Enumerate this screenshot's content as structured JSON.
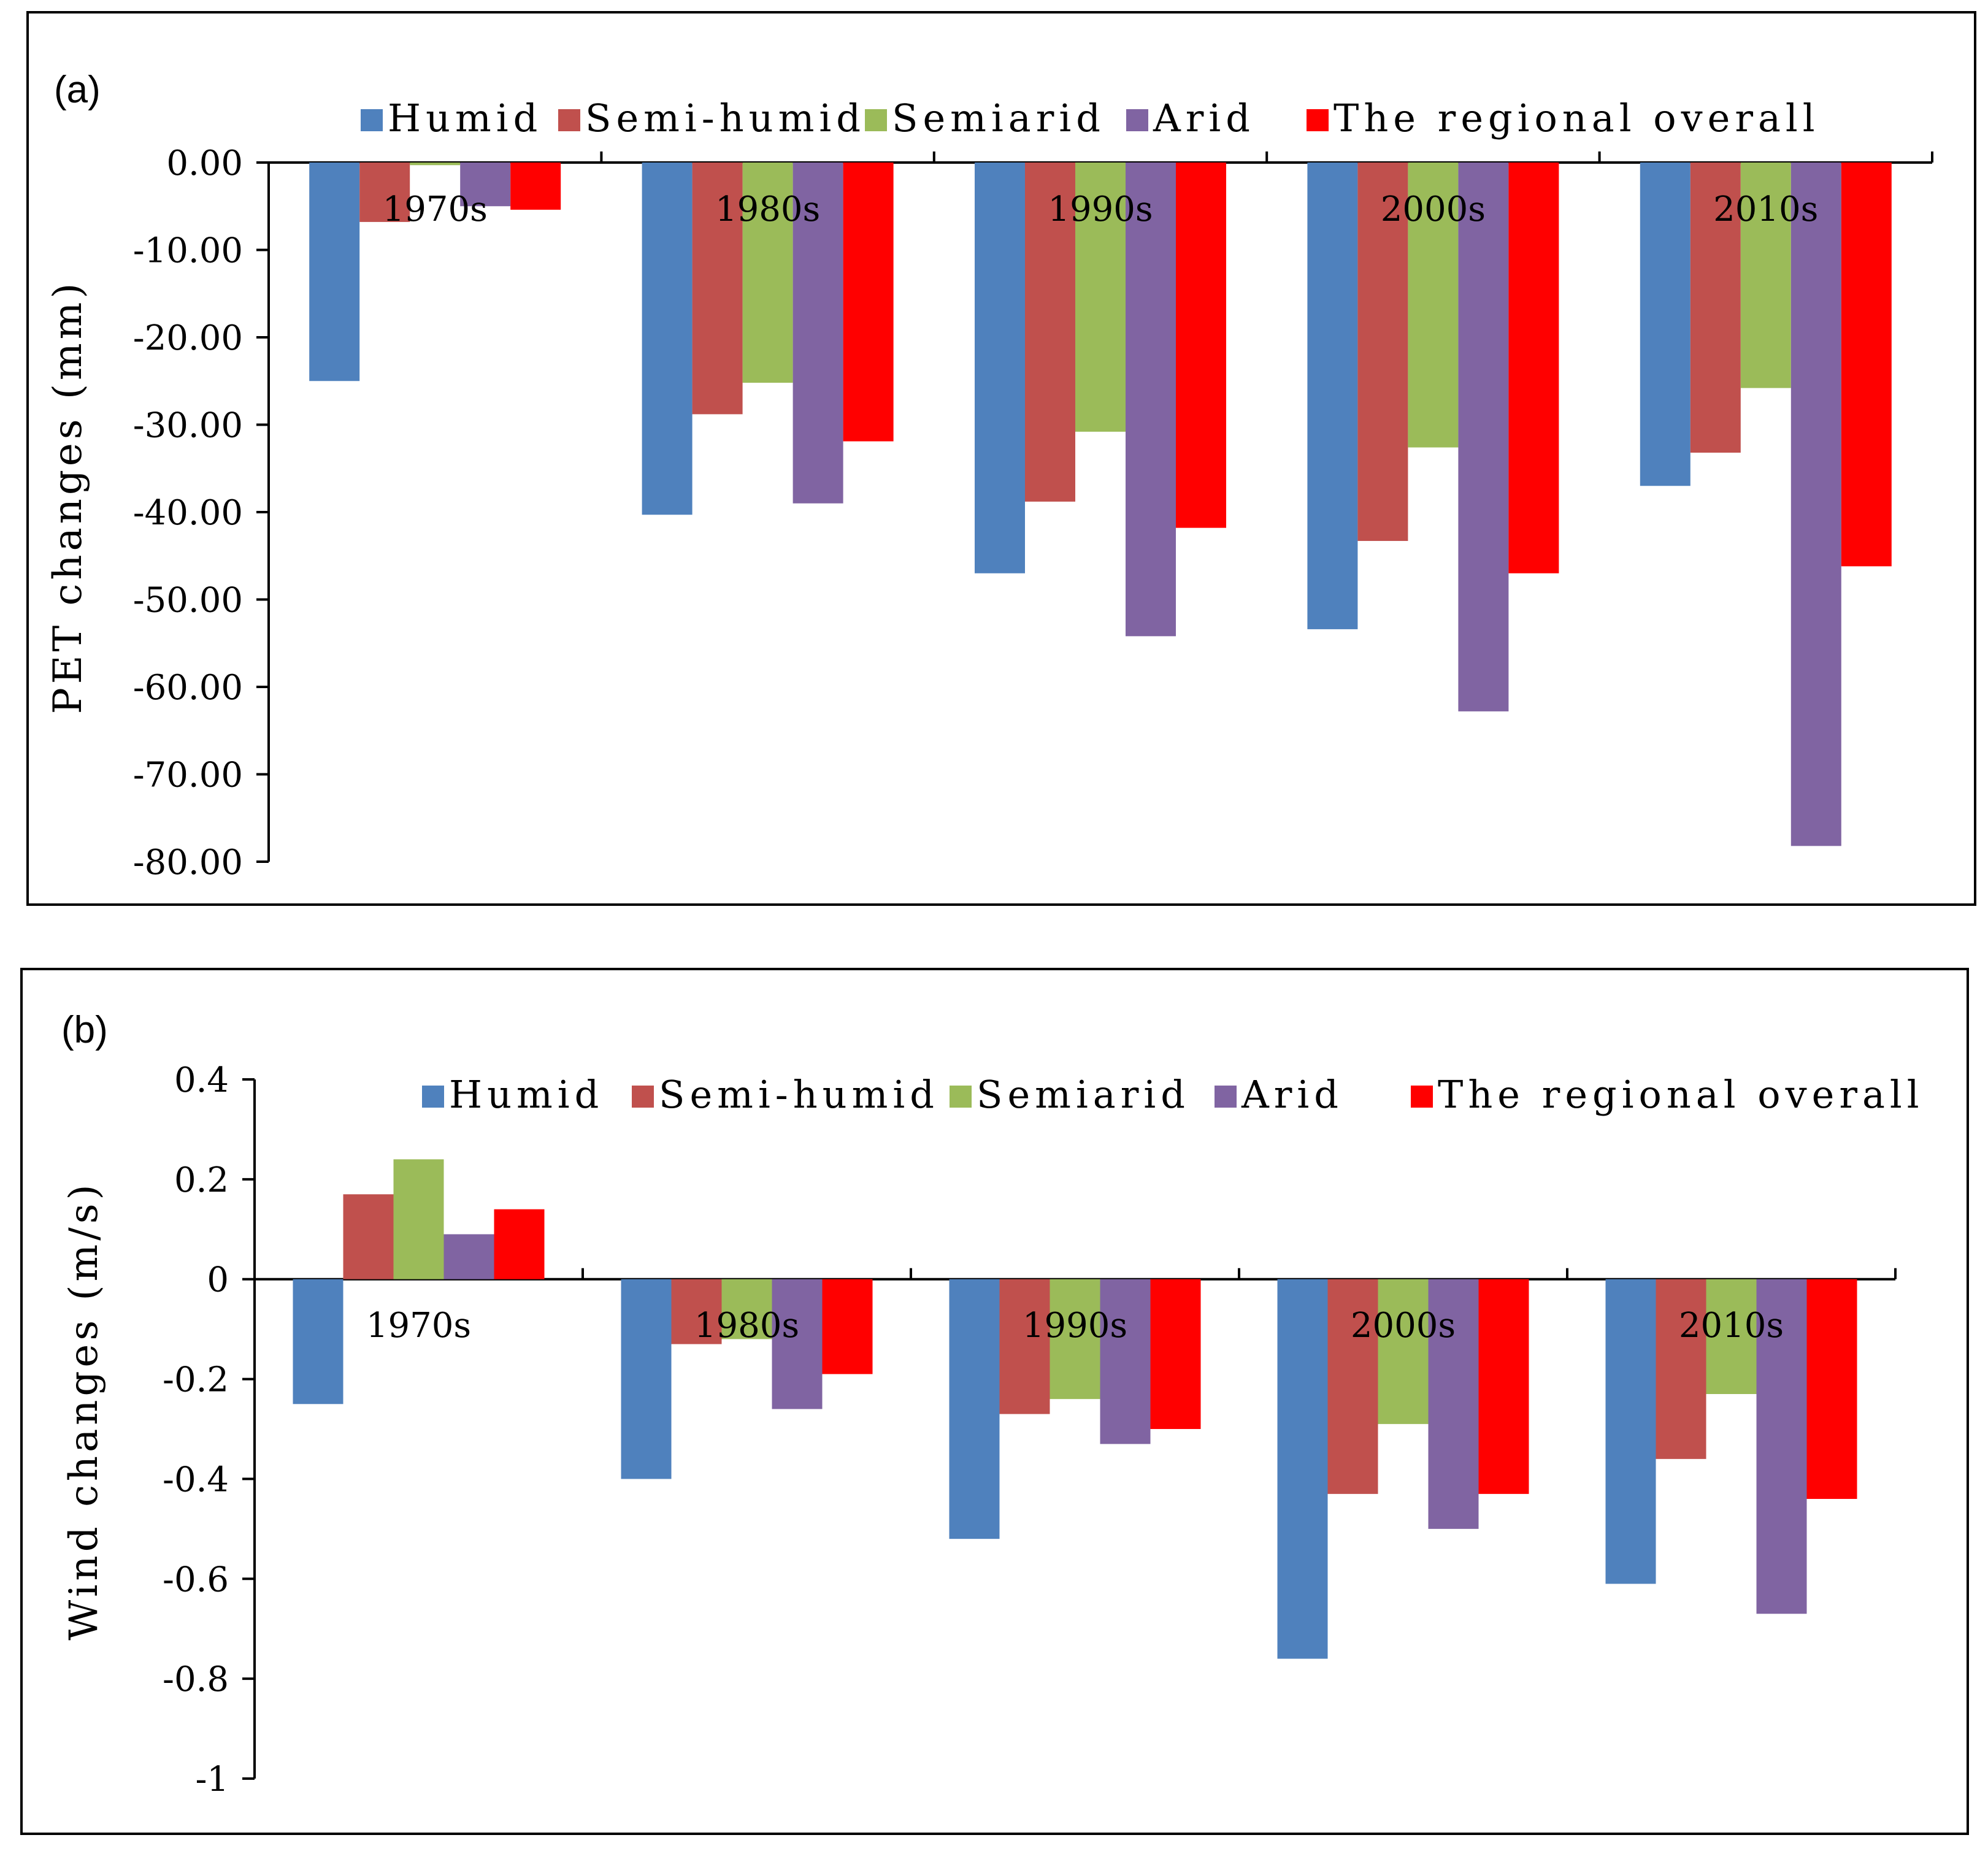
{
  "chart_data": [
    {
      "type": "bar",
      "panel_label": "(a)",
      "title": "",
      "xlabel": "",
      "ylabel": "PET changes (mm)",
      "ylim": [
        -80,
        0
      ],
      "ytick_values": [
        0,
        -10,
        -20,
        -30,
        -40,
        -50,
        -60,
        -70,
        -80
      ],
      "ytick_labels": [
        "0.00",
        "-10.00",
        "-20.00",
        "-30.00",
        "-40.00",
        "-50.00",
        "-60.00",
        "-70.00",
        "-80.00"
      ],
      "categories": [
        "1970s",
        "1980s",
        "1990s",
        "2000s",
        "2010s"
      ],
      "legend_position": "top",
      "series": [
        {
          "name": "Humid",
          "color": "#4F81BD",
          "values": [
            -25.0,
            -40.3,
            -47.0,
            -53.4,
            -37.0
          ]
        },
        {
          "name": "Semi-humid",
          "color": "#C0504D",
          "values": [
            -6.8,
            -28.8,
            -38.8,
            -43.3,
            -33.2
          ]
        },
        {
          "name": "Semiarid",
          "color": "#9BBB59",
          "values": [
            -0.3,
            -25.2,
            -30.8,
            -32.6,
            -25.8
          ]
        },
        {
          "name": "Arid",
          "color": "#8064A2",
          "values": [
            -5.0,
            -39.0,
            -54.2,
            -62.8,
            -78.2
          ]
        },
        {
          "name": "The regional overall",
          "color": "#FF0000",
          "values": [
            -5.4,
            -31.9,
            -41.8,
            -47.0,
            -46.2
          ]
        }
      ]
    },
    {
      "type": "bar",
      "panel_label": "(b)",
      "title": "",
      "xlabel": "",
      "ylabel": "Wind changes (m/s)",
      "ylim": [
        -1,
        0.4
      ],
      "ytick_values": [
        0.4,
        0.2,
        0,
        -0.2,
        -0.4,
        -0.6,
        -0.8,
        -1
      ],
      "ytick_labels": [
        "0.4",
        "0.2",
        "0",
        "-0.2",
        "-0.4",
        "-0.6",
        "-0.8",
        "-1"
      ],
      "categories": [
        "1970s",
        "1980s",
        "1990s",
        "2000s",
        "2010s"
      ],
      "legend_position": "top",
      "series": [
        {
          "name": "Humid",
          "color": "#4F81BD",
          "values": [
            -0.25,
            -0.4,
            -0.52,
            -0.76,
            -0.61
          ]
        },
        {
          "name": "Semi-humid",
          "color": "#C0504D",
          "values": [
            0.17,
            -0.13,
            -0.27,
            -0.43,
            -0.36
          ]
        },
        {
          "name": "Semiarid",
          "color": "#9BBB59",
          "values": [
            0.24,
            -0.12,
            -0.24,
            -0.29,
            -0.23
          ]
        },
        {
          "name": "Arid",
          "color": "#8064A2",
          "values": [
            0.09,
            -0.26,
            -0.33,
            -0.5,
            -0.67
          ]
        },
        {
          "name": "The regional overall",
          "color": "#FF0000",
          "values": [
            0.14,
            -0.19,
            -0.3,
            -0.43,
            -0.44
          ]
        }
      ]
    }
  ]
}
